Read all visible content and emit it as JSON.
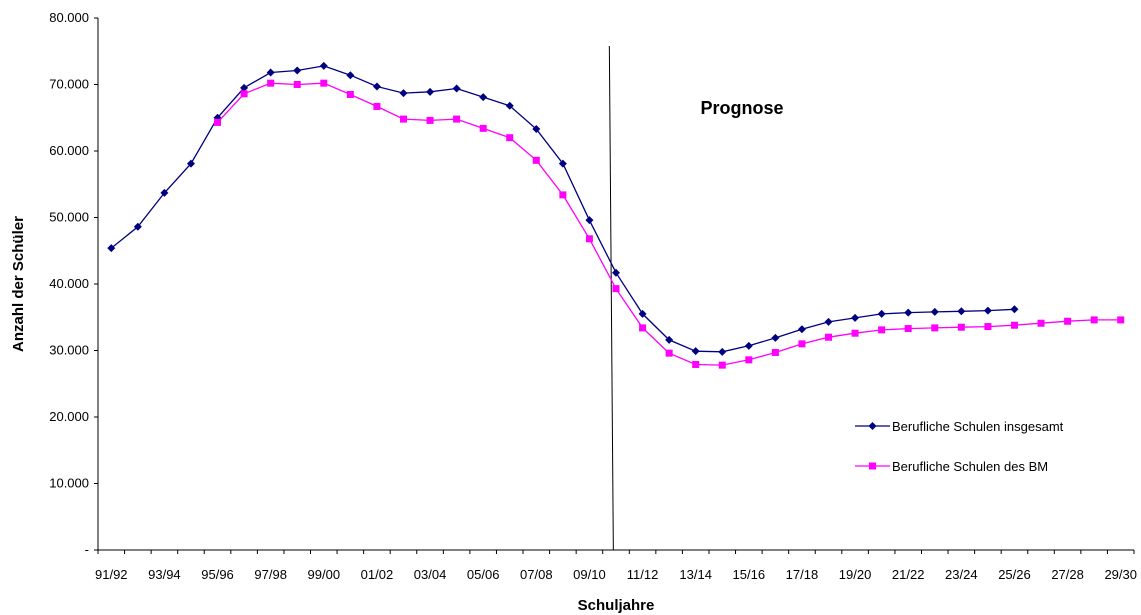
{
  "chart_data": {
    "type": "line",
    "title": "",
    "xlabel": "Schuljahre",
    "ylabel": "Anzahl der Schüler",
    "ylim": [
      0,
      80000
    ],
    "y_tick_labels": [
      "-",
      "10.000",
      "20.000",
      "30.000",
      "40.000",
      "50.000",
      "60.000",
      "70.000",
      "80.000"
    ],
    "categories": [
      "91/92",
      "92/93",
      "93/94",
      "94/95",
      "95/96",
      "96/97",
      "97/98",
      "98/99",
      "99/00",
      "00/01",
      "01/02",
      "02/03",
      "03/04",
      "04/05",
      "05/06",
      "06/07",
      "07/08",
      "08/09",
      "09/10",
      "10/11",
      "11/12",
      "12/13",
      "13/14",
      "14/15",
      "15/16",
      "16/17",
      "17/18",
      "18/19",
      "19/20",
      "20/21",
      "21/22",
      "22/23",
      "23/24",
      "24/25",
      "25/26",
      "26/27",
      "27/28",
      "28/29",
      "29/30"
    ],
    "x_tick_labels": [
      "91/92",
      "93/94",
      "95/96",
      "97/98",
      "99/00",
      "01/02",
      "03/04",
      "05/06",
      "07/08",
      "09/10",
      "11/12",
      "13/14",
      "15/16",
      "17/18",
      "19/20",
      "21/22",
      "23/24",
      "25/26",
      "27/28",
      "29/30"
    ],
    "series": [
      {
        "name": "Berufliche Schulen insgesamt",
        "color": "#000080",
        "marker": "diamond",
        "values": [
          45400,
          48600,
          53700,
          58100,
          65000,
          69500,
          71800,
          72100,
          72800,
          71400,
          69700,
          68700,
          68900,
          69400,
          68100,
          66800,
          63300,
          58100,
          49600,
          41700,
          35500,
          31600,
          29900,
          29800,
          30700,
          31900,
          33200,
          34300,
          34900,
          35500,
          35700,
          35800,
          35900,
          36000,
          36200,
          null,
          null,
          null,
          null
        ]
      },
      {
        "name": "Berufliche Schulen des BM",
        "color": "#FF00FF",
        "marker": "square",
        "values": [
          null,
          null,
          null,
          null,
          64300,
          68600,
          70200,
          70000,
          70200,
          68500,
          66700,
          64800,
          64600,
          64800,
          63400,
          62000,
          58600,
          53400,
          46800,
          39300,
          33400,
          29600,
          27900,
          27800,
          28600,
          29700,
          31000,
          32000,
          32600,
          33100,
          33300,
          33400,
          33500,
          33600,
          33800,
          34100,
          34400,
          34600,
          34600
        ]
      }
    ],
    "annotation": "Prognose",
    "divider_category_index": 18.9,
    "legend_position": "lower-right",
    "grid": false
  }
}
